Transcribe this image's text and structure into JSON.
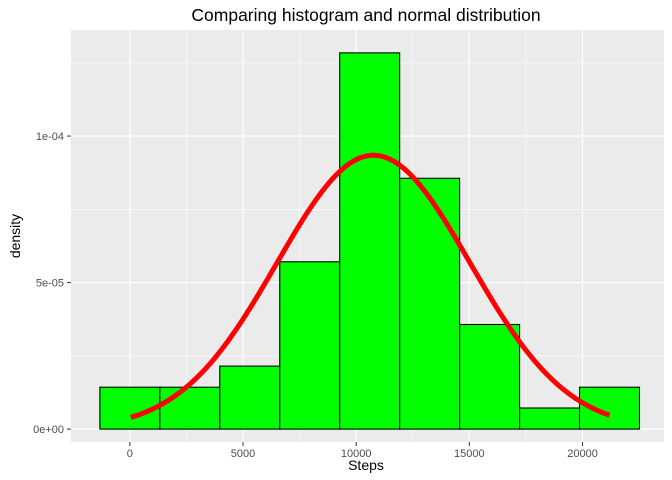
{
  "chart_data": {
    "type": "bar",
    "title": "Comparing histogram and normal distribution",
    "xlabel": "Steps",
    "ylabel": "density",
    "xlim": [
      -2600,
      23600
    ],
    "ylim": [
      -4.4e-06,
      0.0001362
    ],
    "x_ticks": [
      0,
      5000,
      10000,
      15000,
      20000
    ],
    "x_tick_labels": [
      "0",
      "5000",
      "10000",
      "15000",
      "20000"
    ],
    "y_ticks": [
      0,
      5e-05,
      0.0001
    ],
    "y_tick_labels": [
      "0e+00",
      "5e-05",
      "1e-04"
    ],
    "grid": true,
    "histogram": {
      "fill": "#00ff00",
      "edge_color": "#000000",
      "bin_edges": [
        -1324,
        1325,
        3974,
        6623,
        9272,
        11921,
        14570,
        17219,
        19868,
        22517
      ],
      "density": [
        1.43e-05,
        1.43e-05,
        2.15e-05,
        5.71e-05,
        0.0001284,
        8.56e-05,
        3.57e-05,
        7.2e-06,
        1.43e-05
      ]
    },
    "normal_curve": {
      "color": "#ff0000",
      "mean": 10766,
      "sd": 4269,
      "x_range": [
        41,
        21194
      ]
    }
  }
}
